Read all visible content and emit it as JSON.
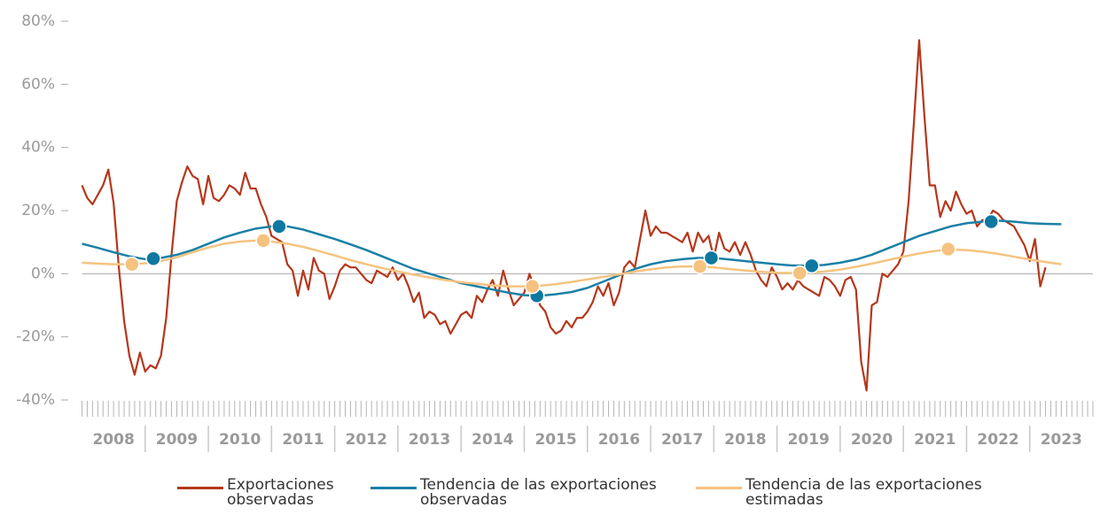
{
  "chart_data": {
    "type": "line",
    "xlim": [
      2008,
      2024
    ],
    "xticks": [
      {
        "value": 2008.5,
        "label": "2008"
      },
      {
        "value": 2009.5,
        "label": "2009"
      },
      {
        "value": 2010.5,
        "label": "2010"
      },
      {
        "value": 2011.5,
        "label": "2011"
      },
      {
        "value": 2012.5,
        "label": "2012"
      },
      {
        "value": 2013.5,
        "label": "2013"
      },
      {
        "value": 2014.5,
        "label": "2014"
      },
      {
        "value": 2015.5,
        "label": "2015"
      },
      {
        "value": 2016.5,
        "label": "2016"
      },
      {
        "value": 2017.5,
        "label": "2017"
      },
      {
        "value": 2018.5,
        "label": "2018"
      },
      {
        "value": 2019.5,
        "label": "2019"
      },
      {
        "value": 2020.5,
        "label": "2020"
      },
      {
        "value": 2021.5,
        "label": "2021"
      },
      {
        "value": 2022.5,
        "label": "2022"
      },
      {
        "value": 2023.5,
        "label": "2023"
      }
    ],
    "ylim": [
      -40,
      80
    ],
    "yticks": [
      {
        "value": -40,
        "label": "-40%"
      },
      {
        "value": -20,
        "label": "-20%"
      },
      {
        "value": 0,
        "label": "0%"
      },
      {
        "value": 20,
        "label": "20%"
      },
      {
        "value": 40,
        "label": "40%"
      },
      {
        "value": 60,
        "label": "60%"
      },
      {
        "value": 80,
        "label": "80%"
      }
    ],
    "series": [
      {
        "name": "Exportaciones observadas",
        "color": "#b5371b",
        "x": [
          2008,
          2008.083,
          2008.167,
          2008.25,
          2008.333,
          2008.417,
          2008.5,
          2008.583,
          2008.667,
          2008.75,
          2008.833,
          2008.917,
          2009,
          2009.083,
          2009.167,
          2009.25,
          2009.333,
          2009.417,
          2009.5,
          2009.583,
          2009.667,
          2009.75,
          2009.833,
          2009.917,
          2010,
          2010.083,
          2010.167,
          2010.25,
          2010.333,
          2010.417,
          2010.5,
          2010.583,
          2010.667,
          2010.75,
          2010.833,
          2010.917,
          2011,
          2011.083,
          2011.167,
          2011.25,
          2011.333,
          2011.417,
          2011.5,
          2011.583,
          2011.667,
          2011.75,
          2011.833,
          2011.917,
          2012,
          2012.083,
          2012.167,
          2012.25,
          2012.333,
          2012.417,
          2012.5,
          2012.583,
          2012.667,
          2012.75,
          2012.833,
          2012.917,
          2013,
          2013.083,
          2013.167,
          2013.25,
          2013.333,
          2013.417,
          2013.5,
          2013.583,
          2013.667,
          2013.75,
          2013.833,
          2013.917,
          2014,
          2014.083,
          2014.167,
          2014.25,
          2014.333,
          2014.417,
          2014.5,
          2014.583,
          2014.667,
          2014.75,
          2014.833,
          2014.917,
          2015,
          2015.083,
          2015.167,
          2015.25,
          2015.333,
          2015.417,
          2015.5,
          2015.583,
          2015.667,
          2015.75,
          2015.833,
          2015.917,
          2016,
          2016.083,
          2016.167,
          2016.25,
          2016.333,
          2016.417,
          2016.5,
          2016.583,
          2016.667,
          2016.75,
          2016.833,
          2016.917,
          2017,
          2017.083,
          2017.167,
          2017.25,
          2017.333,
          2017.417,
          2017.5,
          2017.583,
          2017.667,
          2017.75,
          2017.833,
          2017.917,
          2018,
          2018.083,
          2018.167,
          2018.25,
          2018.333,
          2018.417,
          2018.5,
          2018.583,
          2018.667,
          2018.75,
          2018.833,
          2018.917,
          2019,
          2019.083,
          2019.167,
          2019.25,
          2019.333,
          2019.417,
          2019.5,
          2019.583,
          2019.667,
          2019.75,
          2019.833,
          2019.917,
          2020,
          2020.083,
          2020.167,
          2020.25,
          2020.333,
          2020.417,
          2020.5,
          2020.583,
          2020.667,
          2020.75,
          2020.833,
          2020.917,
          2021,
          2021.083,
          2021.167,
          2021.25,
          2021.333,
          2021.417,
          2021.5,
          2021.583,
          2021.667,
          2021.75,
          2021.833,
          2021.917,
          2022,
          2022.083,
          2022.167,
          2022.25,
          2022.333,
          2022.417,
          2022.5,
          2022.583,
          2022.667,
          2022.75,
          2022.833,
          2022.917,
          2023,
          2023.083,
          2023.167,
          2023.25
        ],
        "values": [
          28,
          24,
          22,
          25,
          28,
          33,
          22.5,
          2,
          -15,
          -26,
          -32,
          -25,
          -31,
          -29,
          -30,
          -26,
          -14,
          6,
          23,
          29,
          34,
          31,
          30,
          22,
          31,
          24,
          23,
          25,
          28,
          27,
          25,
          32,
          27,
          27,
          22,
          18,
          12,
          11,
          10,
          3,
          1,
          -7,
          1,
          -5,
          5,
          1,
          0,
          -8,
          -4,
          1,
          3,
          2,
          2,
          0,
          -2,
          -3,
          1,
          0,
          -1,
          2,
          -2,
          0,
          -4,
          -9,
          -6,
          -14,
          -12,
          -13,
          -16,
          -15,
          -19,
          -16,
          -13,
          -12,
          -14,
          -7,
          -9,
          -5,
          -2,
          -7,
          1,
          -5,
          -10,
          -8,
          -6,
          0,
          -5,
          -10,
          -12,
          -17,
          -19,
          -18,
          -15,
          -17,
          -14,
          -14,
          -12,
          -9,
          -4,
          -7,
          -3,
          -10,
          -6,
          2,
          4,
          2,
          11,
          20,
          12,
          15,
          13,
          13,
          12,
          11,
          10,
          13,
          7,
          13,
          10,
          12,
          5,
          13,
          8,
          7,
          10,
          6,
          10,
          6,
          1,
          -2,
          -4,
          2,
          -1,
          -5,
          -3,
          -5,
          -2,
          -4,
          -5,
          -6,
          -7,
          -1,
          -2,
          -4,
          -7,
          -2,
          -1,
          -5,
          -28,
          -37,
          -10,
          -9,
          0,
          -1,
          1,
          3,
          7,
          23,
          48,
          74,
          50,
          28,
          28,
          18,
          23,
          20,
          26,
          22,
          19,
          20,
          15,
          17,
          17,
          20,
          19,
          17,
          16,
          15,
          12,
          9,
          4,
          11,
          -4,
          2
        ]
      },
      {
        "name": "Tendencia de las exportaciones observadas",
        "color": "#1a80a6",
        "marker_color": "#0e78a0",
        "x": [
          2008,
          2008.25,
          2008.5,
          2008.75,
          2009,
          2009.25,
          2009.5,
          2009.75,
          2010,
          2010.25,
          2010.5,
          2010.75,
          2011,
          2011.25,
          2011.5,
          2011.75,
          2012,
          2012.25,
          2012.5,
          2012.75,
          2013,
          2013.25,
          2013.5,
          2013.75,
          2014,
          2014.25,
          2014.5,
          2014.75,
          2015,
          2015.25,
          2015.5,
          2015.75,
          2016,
          2016.25,
          2016.5,
          2016.75,
          2017,
          2017.25,
          2017.5,
          2017.75,
          2018,
          2018.25,
          2018.5,
          2018.75,
          2019,
          2019.25,
          2019.5,
          2019.75,
          2020,
          2020.25,
          2020.5,
          2020.75,
          2021,
          2021.25,
          2021.5,
          2021.75,
          2022,
          2022.25,
          2022.5,
          2022.75,
          2023,
          2023.25,
          2023.5
        ],
        "values": [
          9.5,
          8.2,
          6.8,
          5.5,
          4.6,
          5,
          6,
          7.5,
          9.5,
          11.5,
          13,
          14.3,
          15,
          15,
          14,
          12.5,
          11,
          9.3,
          7.5,
          5.5,
          3.5,
          1.5,
          0,
          -1.5,
          -3,
          -4,
          -5,
          -6,
          -6.8,
          -7,
          -6.5,
          -5.8,
          -4.5,
          -2.5,
          -0.5,
          1.5,
          3,
          4,
          4.6,
          5,
          5,
          4.5,
          4,
          3.5,
          3,
          2.6,
          2.5,
          2.8,
          3.5,
          4.5,
          6,
          8,
          10,
          12,
          13.5,
          15,
          16,
          16.5,
          16.8,
          16.5,
          16,
          15.8,
          15.7
        ],
        "markers": {
          "x": [
            2009.13,
            2011.12,
            2015.2,
            2017.96,
            2019.55,
            2022.39
          ],
          "values": [
            4.8,
            15,
            -7,
            5,
            2.5,
            16.5
          ]
        }
      },
      {
        "name": "Tendencia de las exportaciones estimadas",
        "color": "#f5c37f",
        "marker_color": "#f6c27f",
        "x": [
          2008,
          2008.25,
          2008.5,
          2008.75,
          2009,
          2009.25,
          2009.5,
          2009.75,
          2010,
          2010.25,
          2010.5,
          2010.75,
          2011,
          2011.25,
          2011.5,
          2011.75,
          2012,
          2012.25,
          2012.5,
          2012.75,
          2013,
          2013.25,
          2013.5,
          2013.75,
          2014,
          2014.25,
          2014.5,
          2014.75,
          2015,
          2015.25,
          2015.5,
          2015.75,
          2016,
          2016.25,
          2016.5,
          2016.75,
          2017,
          2017.25,
          2017.5,
          2017.75,
          2018,
          2018.25,
          2018.5,
          2018.75,
          2019,
          2019.25,
          2019.5,
          2019.75,
          2020,
          2020.25,
          2020.5,
          2020.75,
          2021,
          2021.25,
          2021.5,
          2021.75,
          2022,
          2022.25,
          2022.5,
          2022.75,
          2023,
          2023.25,
          2023.5
        ],
        "values": [
          3.5,
          3.2,
          3,
          3,
          3.3,
          4,
          5.2,
          6.8,
          8.3,
          9.5,
          10.2,
          10.5,
          10.2,
          9.5,
          8.5,
          7.2,
          5.8,
          4.3,
          3,
          1.8,
          0.7,
          -0.3,
          -1.2,
          -2,
          -2.7,
          -3.2,
          -3.7,
          -4,
          -4,
          -3.8,
          -3.3,
          -2.6,
          -1.8,
          -1,
          -0.2,
          0.7,
          1.4,
          2,
          2.3,
          2.3,
          2,
          1.5,
          1,
          0.6,
          0.3,
          0.2,
          0.3,
          0.7,
          1.3,
          2.2,
          3.2,
          4.3,
          5.4,
          6.4,
          7.2,
          7.7,
          7.5,
          7,
          6.3,
          5.4,
          4.5,
          3.7,
          3
        ],
        "markers": {
          "x": [
            2008.79,
            2010.87,
            2015.13,
            2017.78,
            2019.36,
            2021.71
          ],
          "values": [
            3,
            10.5,
            -4,
            2.3,
            0.2,
            7.8
          ]
        }
      }
    ]
  }
}
